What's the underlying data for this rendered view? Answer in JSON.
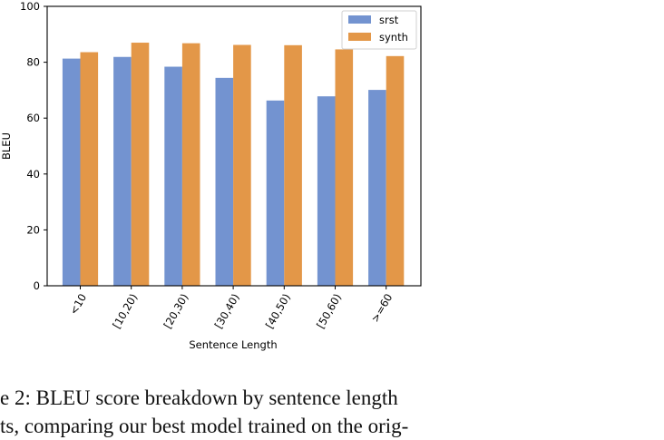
{
  "chart_data": {
    "type": "bar",
    "categories": [
      "<10",
      "[10,20)",
      "[20,30)",
      "[30,40)",
      "[40,50)",
      "[50,60)",
      ">=60"
    ],
    "series": [
      {
        "name": "srst",
        "color": "#7393d0",
        "values": [
          81.3,
          81.9,
          78.4,
          74.4,
          66.3,
          67.8,
          70.1
        ]
      },
      {
        "name": "synth",
        "color": "#e39748",
        "values": [
          83.6,
          87.0,
          86.8,
          86.2,
          86.1,
          84.6,
          82.2
        ]
      }
    ],
    "xlabel": "Sentence Length",
    "ylabel": "BLEU",
    "ylim": [
      0,
      100
    ],
    "yticks": [
      0,
      20,
      40,
      60,
      80,
      100
    ],
    "grid": false,
    "legend_position": "top-right"
  },
  "caption": {
    "line1": "e 2:  BLEU score breakdown by sentence length",
    "line2": "ts, comparing our best model trained on the orig-"
  }
}
